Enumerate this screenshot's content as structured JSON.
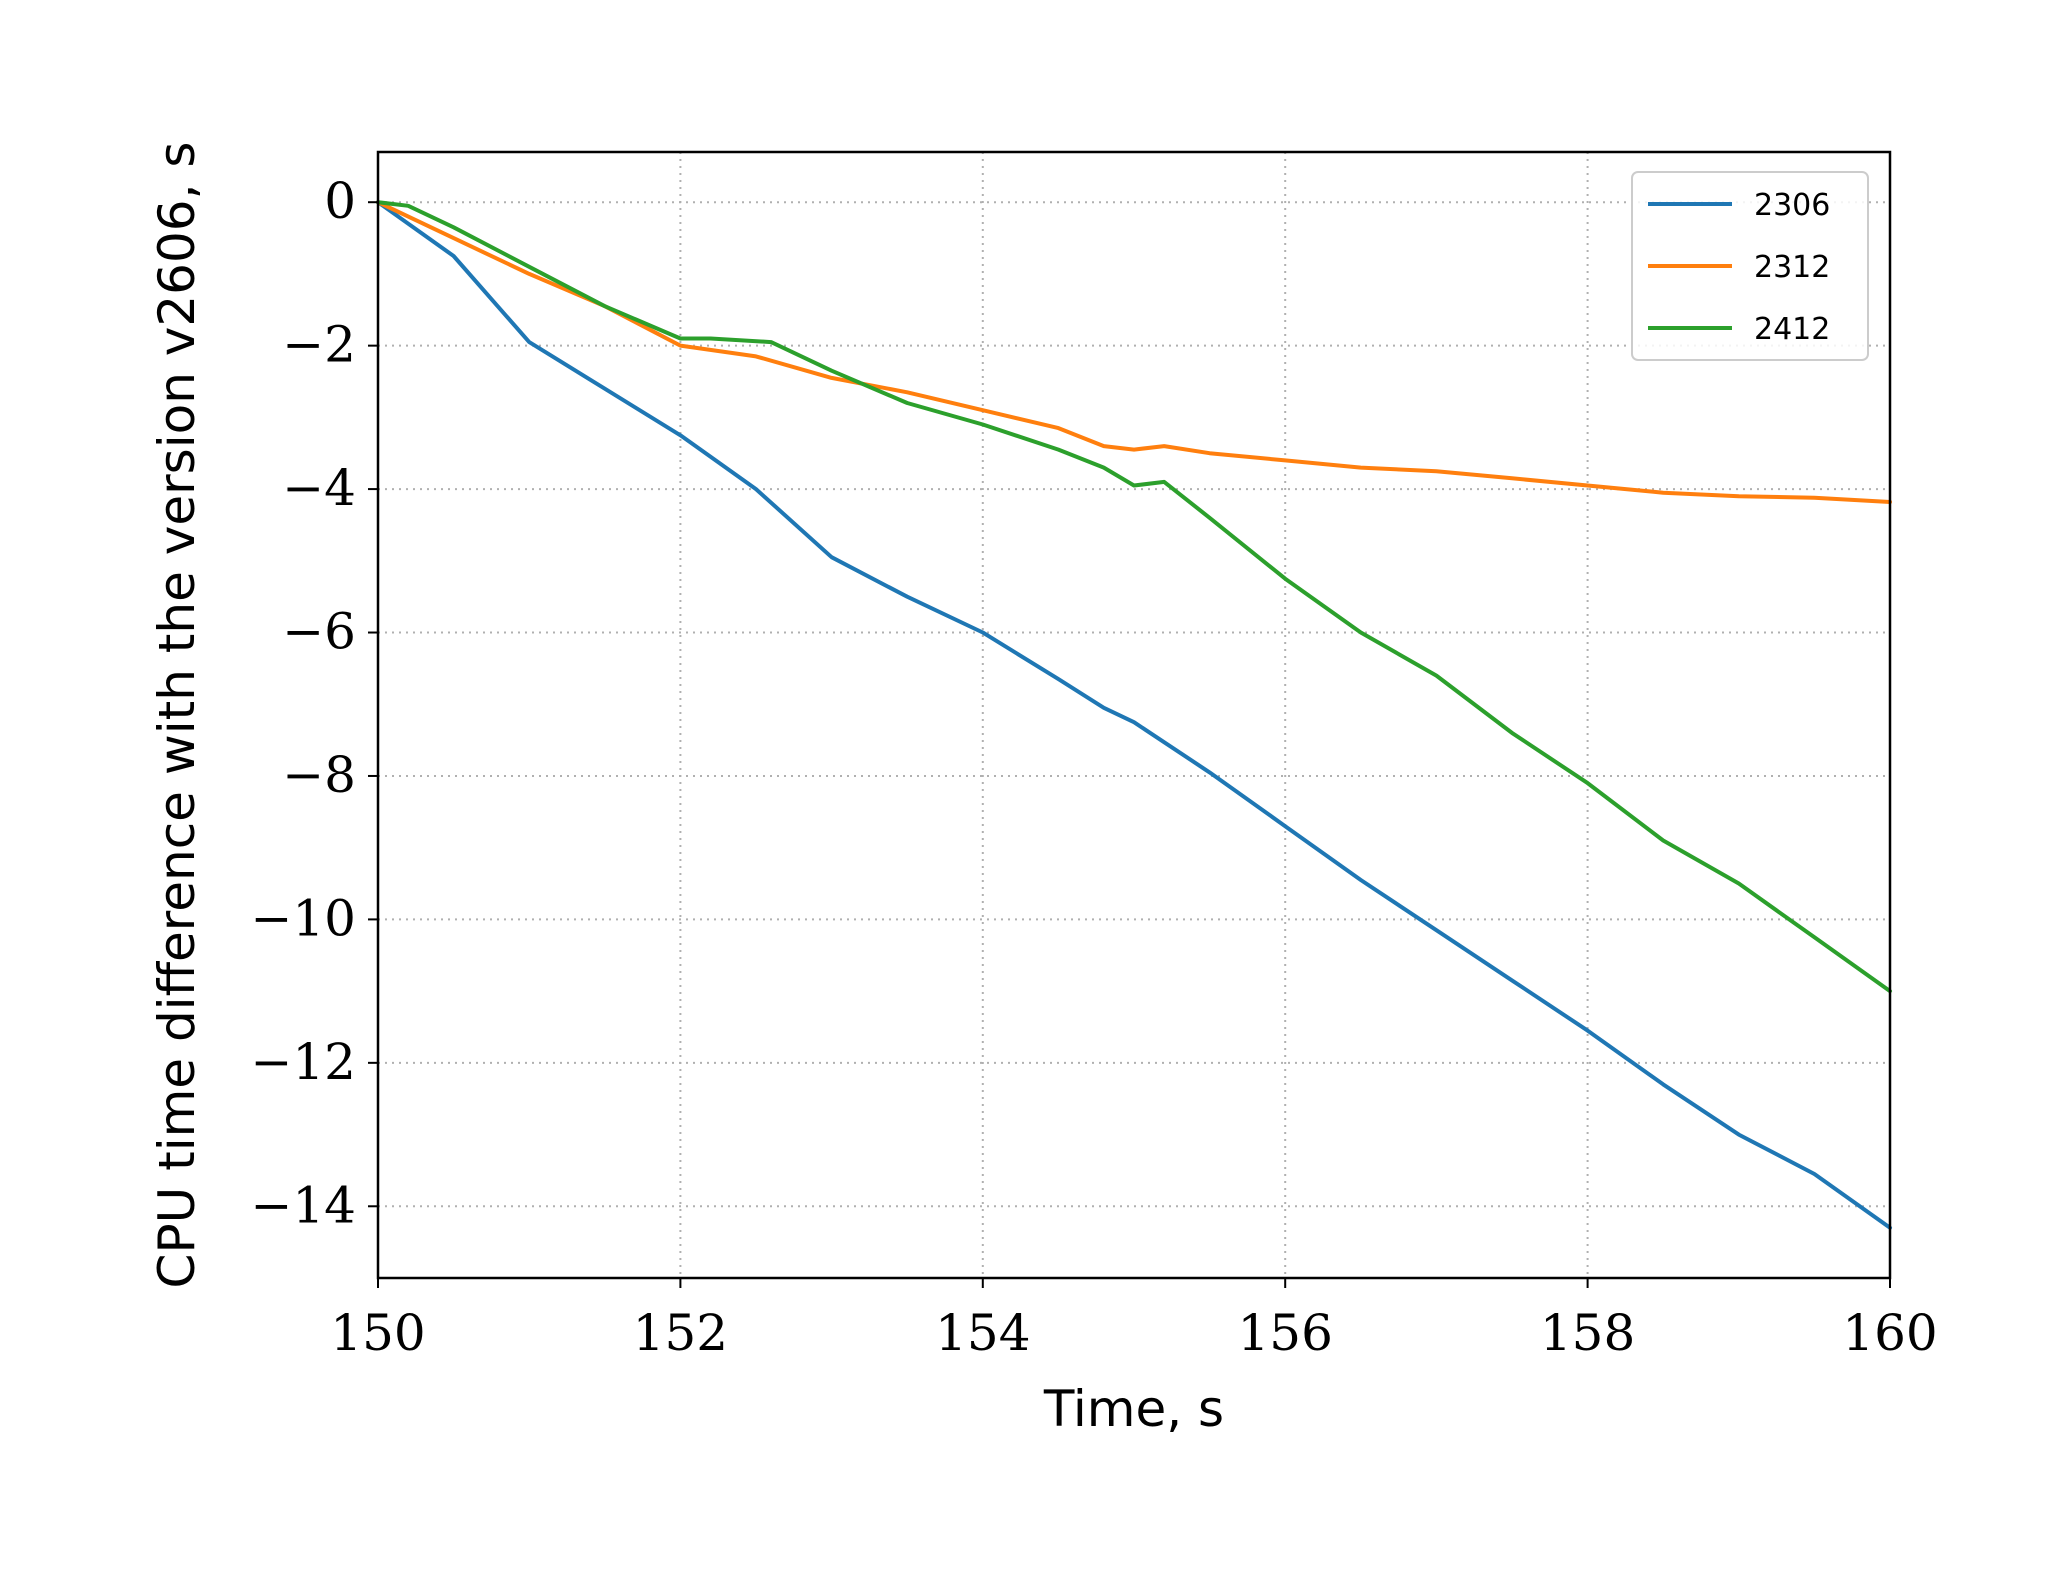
{
  "chart_data": {
    "type": "line",
    "title": "",
    "xlabel": "Time, s",
    "ylabel": "CPU time difference with the version v2606, s",
    "xlim": [
      150,
      160
    ],
    "ylim": [
      -15,
      0.7
    ],
    "xticks": [
      150,
      152,
      154,
      156,
      158,
      160
    ],
    "xtick_labels": [
      "150",
      "152",
      "154",
      "156",
      "158",
      "160"
    ],
    "yticks": [
      0,
      -2,
      -4,
      -6,
      -8,
      -10,
      -12,
      -14
    ],
    "ytick_labels": [
      "0",
      "−2",
      "−4",
      "−6",
      "−8",
      "−10",
      "−12",
      "−14"
    ],
    "grid": true,
    "legend_position": "top-right",
    "series": [
      {
        "name": "2306",
        "color": "#1f77b4",
        "x": [
          150,
          150.5,
          151,
          151.5,
          152,
          152.5,
          153,
          153.5,
          154,
          154.5,
          154.8,
          155,
          155.5,
          156,
          156.5,
          157,
          157.5,
          158,
          158.5,
          159,
          159.5,
          160
        ],
        "y": [
          0,
          -0.75,
          -1.95,
          -2.6,
          -3.25,
          -4.0,
          -4.95,
          -5.5,
          -6.0,
          -6.65,
          -7.05,
          -7.25,
          -7.95,
          -8.7,
          -9.45,
          -10.15,
          -10.85,
          -11.55,
          -12.3,
          -13.0,
          -13.55,
          -14.3
        ]
      },
      {
        "name": "2312",
        "color": "#ff7f0e",
        "x": [
          150,
          150.5,
          151,
          151.5,
          152,
          152.5,
          153,
          153.5,
          154,
          154.5,
          154.8,
          155,
          155.2,
          155.5,
          156,
          156.5,
          157,
          157.5,
          158,
          158.5,
          159,
          159.5,
          160
        ],
        "y": [
          0,
          -0.5,
          -1.0,
          -1.45,
          -2.0,
          -2.15,
          -2.45,
          -2.65,
          -2.9,
          -3.15,
          -3.4,
          -3.45,
          -3.4,
          -3.5,
          -3.6,
          -3.7,
          -3.75,
          -3.85,
          -3.95,
          -4.05,
          -4.1,
          -4.12,
          -4.18
        ]
      },
      {
        "name": "2412",
        "color": "#2ca02c",
        "x": [
          150,
          150.2,
          150.5,
          151,
          151.5,
          152,
          152.2,
          152.6,
          153,
          153.5,
          154,
          154.5,
          154.8,
          155,
          155.2,
          155.5,
          156,
          156.5,
          157,
          157.5,
          158,
          158.5,
          159,
          159.5,
          160
        ],
        "y": [
          0,
          -0.05,
          -0.35,
          -0.9,
          -1.45,
          -1.9,
          -1.9,
          -1.95,
          -2.35,
          -2.8,
          -3.1,
          -3.45,
          -3.7,
          -3.95,
          -3.9,
          -4.4,
          -5.25,
          -6.0,
          -6.6,
          -7.4,
          -8.1,
          -8.9,
          -9.5,
          -10.25,
          -11.0
        ]
      }
    ]
  }
}
